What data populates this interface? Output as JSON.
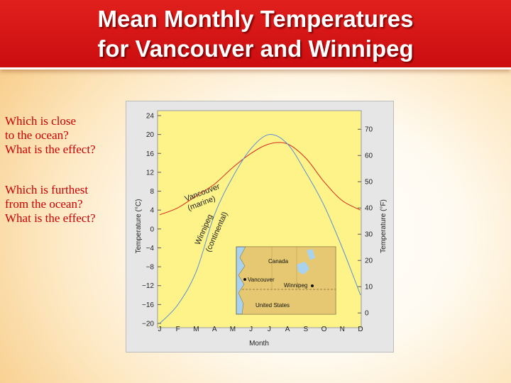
{
  "header": {
    "title_line1": "Mean Monthly Temperatures",
    "title_line2": "for Vancouver and Winnipeg"
  },
  "questions": [
    {
      "lines": [
        "Which is close",
        "to the ocean?",
        "What is the effect?"
      ]
    },
    {
      "lines": [
        "Which is furthest",
        "from the ocean?",
        "What is the effect?"
      ]
    }
  ],
  "colors": {
    "title_red": "#d41414",
    "question_red": "#cc0000",
    "plot_yellow": "#fef389",
    "vancouver_line": "#d62a1e",
    "winnipeg_line": "#5a8fd6",
    "map_land": "#e6c872",
    "map_water": "#a9d2ee"
  },
  "chart_data": {
    "type": "line",
    "categories": [
      "J",
      "F",
      "M",
      "A",
      "M",
      "J",
      "J",
      "A",
      "S",
      "O",
      "N",
      "D"
    ],
    "xlabel": "Month",
    "ylabel_left": "Temperature (°C)",
    "ylabel_right": "Temperature (°F)",
    "ylim_c": [
      -20,
      24
    ],
    "yticks_c": [
      "24",
      "20",
      "16",
      "12",
      "8",
      "4",
      "0",
      "−4",
      "−8",
      "−12",
      "−16",
      "−20"
    ],
    "yticks_c_values": [
      24,
      20,
      16,
      12,
      8,
      4,
      0,
      -4,
      -8,
      -12,
      -16,
      -20
    ],
    "yticks_f": [
      "70",
      "60",
      "50",
      "40",
      "30",
      "20",
      "10",
      "0"
    ],
    "yticks_f_values": [
      70,
      60,
      50,
      40,
      30,
      20,
      10,
      0
    ],
    "grid": false,
    "series": [
      {
        "name": "Vancouver (marine)",
        "label_top": "Vancouver",
        "label_bottom": "(marine)",
        "values": [
          3,
          4.5,
          7,
          9.5,
          13,
          16,
          18,
          18,
          15,
          10,
          6,
          4
        ]
      },
      {
        "name": "Winnipeg (continental)",
        "label_top": "Winnipeg",
        "label_bottom": "(continental)",
        "values": [
          -20,
          -16,
          -9,
          3,
          11,
          17,
          20,
          18,
          12,
          5,
          -4,
          -14
        ]
      }
    ],
    "inset_map": {
      "labels": {
        "country_north": "Canada",
        "country_south": "United States",
        "city_west": "Vancouver",
        "city_east": "Winnipeg"
      }
    }
  }
}
